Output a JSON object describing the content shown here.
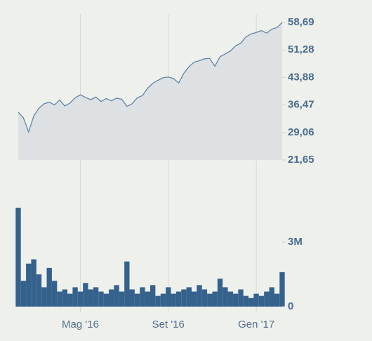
{
  "chart_data": [
    {
      "type": "area",
      "color": "#6384a6",
      "fill": "#dde1e3",
      "values": [
        34.5,
        33.0,
        29.2,
        33.5,
        35.6,
        36.8,
        37.2,
        36.5,
        37.8,
        36.2,
        37.0,
        38.4,
        39.2,
        38.5,
        37.9,
        38.6,
        37.4,
        38.2,
        37.6,
        38.3,
        38.0,
        36.1,
        36.8,
        38.4,
        39.0,
        41.0,
        42.3,
        43.1,
        43.8,
        44.0,
        43.6,
        42.4,
        45.0,
        46.8,
        48.0,
        48.4,
        48.9,
        49.0,
        46.9,
        49.5,
        50.2,
        51.0,
        52.4,
        53.1,
        54.8,
        55.6,
        56.0,
        56.5,
        55.8,
        56.9,
        57.3,
        58.69
      ],
      "ylim": [
        21.65,
        58.69
      ],
      "yticks": [
        {
          "value": 21.65,
          "label": "21,65"
        },
        {
          "value": 29.06,
          "label": "29,06"
        },
        {
          "value": 36.47,
          "label": "36,47"
        },
        {
          "value": 43.88,
          "label": "43,88"
        },
        {
          "value": 51.28,
          "label": "51,28"
        },
        {
          "value": 58.69,
          "label": "58,69"
        }
      ]
    },
    {
      "type": "bar",
      "color": "#35618d",
      "categories": [
        null,
        null,
        null,
        null,
        null,
        null,
        null,
        null,
        null,
        null,
        null,
        null,
        "Mag '16",
        null,
        null,
        null,
        null,
        null,
        null,
        null,
        null,
        null,
        null,
        null,
        null,
        null,
        null,
        null,
        null,
        "Set '16",
        null,
        null,
        null,
        null,
        null,
        null,
        null,
        null,
        null,
        null,
        null,
        null,
        null,
        null,
        null,
        null,
        "Gen '17",
        null,
        null,
        null,
        null,
        null
      ],
      "values": [
        4600000,
        1200000,
        2000000,
        2200000,
        1500000,
        900000,
        1800000,
        1200000,
        700000,
        800000,
        600000,
        900000,
        700000,
        1100000,
        800000,
        900000,
        700000,
        600000,
        800000,
        1000000,
        700000,
        2100000,
        800000,
        600000,
        900000,
        700000,
        1000000,
        500000,
        600000,
        900000,
        600000,
        700000,
        800000,
        900000,
        700000,
        1000000,
        800000,
        600000,
        700000,
        1300000,
        900000,
        700000,
        600000,
        800000,
        500000,
        400000,
        600000,
        500000,
        700000,
        900000,
        600000,
        1600000
      ],
      "ylim": [
        0,
        6200000
      ],
      "yticks": [
        0,
        {
          "value": 3000000,
          "label": "3M"
        }
      ],
      "grid": true
    }
  ]
}
